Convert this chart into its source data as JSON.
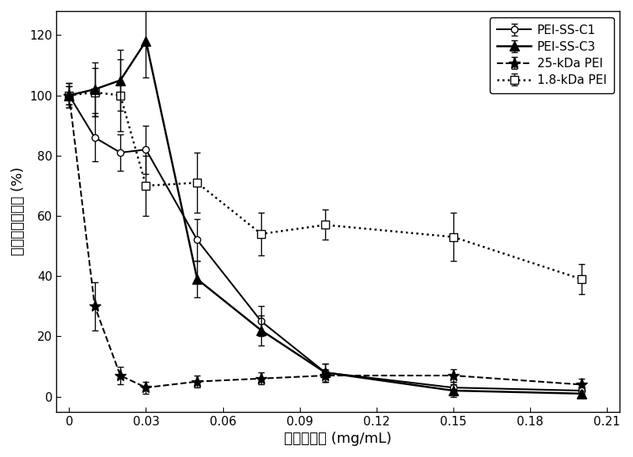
{
  "title": "",
  "xlabel": "聚合物浓度 (mg/mL)",
  "ylabel": "相对细胞存活率 (%)",
  "xlim": [
    -0.005,
    0.215
  ],
  "ylim": [
    -5,
    128
  ],
  "xticks": [
    0,
    0.03,
    0.06,
    0.09,
    0.12,
    0.15,
    0.18,
    0.21
  ],
  "xtick_labels": [
    "0",
    "0.03",
    "0.06",
    "0.09",
    "0.12",
    "0.15",
    "0.18",
    "0.21"
  ],
  "yticks": [
    0,
    20,
    40,
    60,
    80,
    100,
    120
  ],
  "ytick_labels": [
    "0",
    "20",
    "40",
    "60",
    "80",
    "100",
    "120"
  ],
  "pei_ss_c1": {
    "x": [
      0,
      0.01,
      0.02,
      0.03,
      0.05,
      0.075,
      0.1,
      0.15,
      0.2
    ],
    "y": [
      100,
      86,
      81,
      82,
      52,
      25,
      8,
      3,
      2
    ],
    "yerr": [
      3,
      8,
      6,
      8,
      7,
      5,
      3,
      2,
      1
    ],
    "label": "PEI-SS-C1",
    "color": "#000000",
    "linestyle": "-",
    "marker": "o",
    "markerfacecolor": "white",
    "markersize": 6,
    "linewidth": 1.5
  },
  "pei_ss_c3": {
    "x": [
      0,
      0.01,
      0.02,
      0.03,
      0.05,
      0.075,
      0.1,
      0.15,
      0.2
    ],
    "y": [
      100,
      102,
      105,
      118,
      39,
      22,
      8,
      2,
      1
    ],
    "yerr": [
      4,
      9,
      10,
      12,
      6,
      5,
      3,
      2,
      1
    ],
    "label": "PEI-SS-C3",
    "color": "#000000",
    "linestyle": "-",
    "marker": "^",
    "markerfacecolor": "#000000",
    "markersize": 8,
    "linewidth": 1.8
  },
  "pei_25k": {
    "x": [
      0,
      0.01,
      0.02,
      0.03,
      0.05,
      0.075,
      0.1,
      0.15,
      0.2
    ],
    "y": [
      100,
      30,
      7,
      3,
      5,
      6,
      7,
      7,
      4
    ],
    "yerr": [
      3,
      8,
      3,
      2,
      2,
      2,
      2,
      2,
      2
    ],
    "label": "25-kDa PEI",
    "color": "#000000",
    "linestyle": "--",
    "marker": "*",
    "markerfacecolor": "#000000",
    "markersize": 11,
    "linewidth": 1.5
  },
  "pei_1p8k": {
    "x": [
      0,
      0.01,
      0.02,
      0.03,
      0.05,
      0.075,
      0.1,
      0.15,
      0.2
    ],
    "y": [
      100,
      101,
      100,
      70,
      71,
      54,
      57,
      53,
      39
    ],
    "yerr": [
      4,
      8,
      12,
      10,
      10,
      7,
      5,
      8,
      5
    ],
    "label": "1.8-kDa PEI",
    "color": "#000000",
    "linestyle": ":",
    "marker": "s",
    "markerfacecolor": "white",
    "markersize": 7,
    "linewidth": 1.8
  },
  "background_color": "#ffffff",
  "legend_fontsize": 11,
  "axis_fontsize": 13,
  "tick_fontsize": 11
}
